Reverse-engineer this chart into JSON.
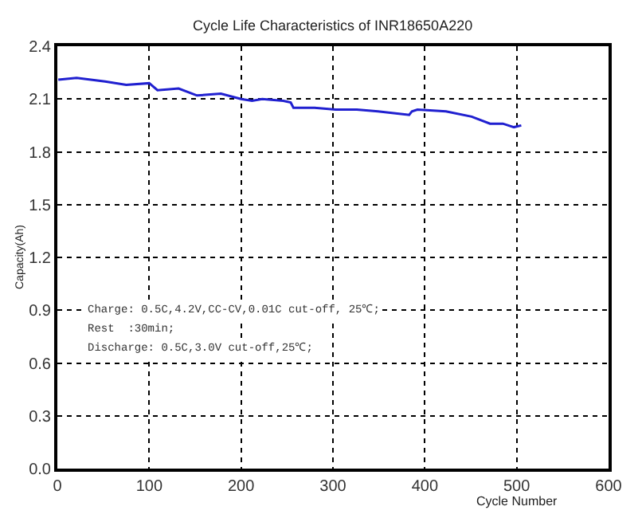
{
  "chart_data": {
    "type": "line",
    "title": "Cycle Life Characteristics of INR18650A220",
    "xlabel": "Cycle Number",
    "ylabel": "Capacity(Ah)",
    "x": [
      1,
      21,
      52,
      75,
      100,
      109,
      132,
      152,
      178,
      200,
      212,
      223,
      246,
      254,
      257,
      280,
      303,
      326,
      349,
      383,
      386,
      392,
      423,
      451,
      471,
      485,
      497,
      505
    ],
    "series": [
      {
        "color": "#2020d0",
        "values": [
          2.21,
          2.22,
          2.2,
          2.18,
          2.19,
          2.15,
          2.16,
          2.12,
          2.13,
          2.1,
          2.09,
          2.1,
          2.09,
          2.08,
          2.05,
          2.05,
          2.04,
          2.04,
          2.03,
          2.01,
          2.03,
          2.04,
          2.03,
          2.0,
          1.96,
          1.96,
          1.94,
          1.95
        ]
      }
    ],
    "xlim": [
      0,
      600
    ],
    "xticks": [
      0,
      100,
      200,
      300,
      400,
      500,
      600
    ],
    "ylim": [
      0.0,
      2.4
    ],
    "yticks": [
      {
        "value": 0,
        "label": "0.0"
      },
      0.3,
      0.6,
      0.9,
      1.2,
      1.5,
      1.8,
      2.1,
      2.4
    ],
    "grid": true,
    "marker": "none",
    "line_style": "solid",
    "annotations": [
      "Charge: 0.5C,4.2V,CC-CV,0.01C cut-off, 25℃;",
      "Rest  :30min;",
      "Discharge: 0.5C,3.0V cut-off,25℃;"
    ]
  }
}
